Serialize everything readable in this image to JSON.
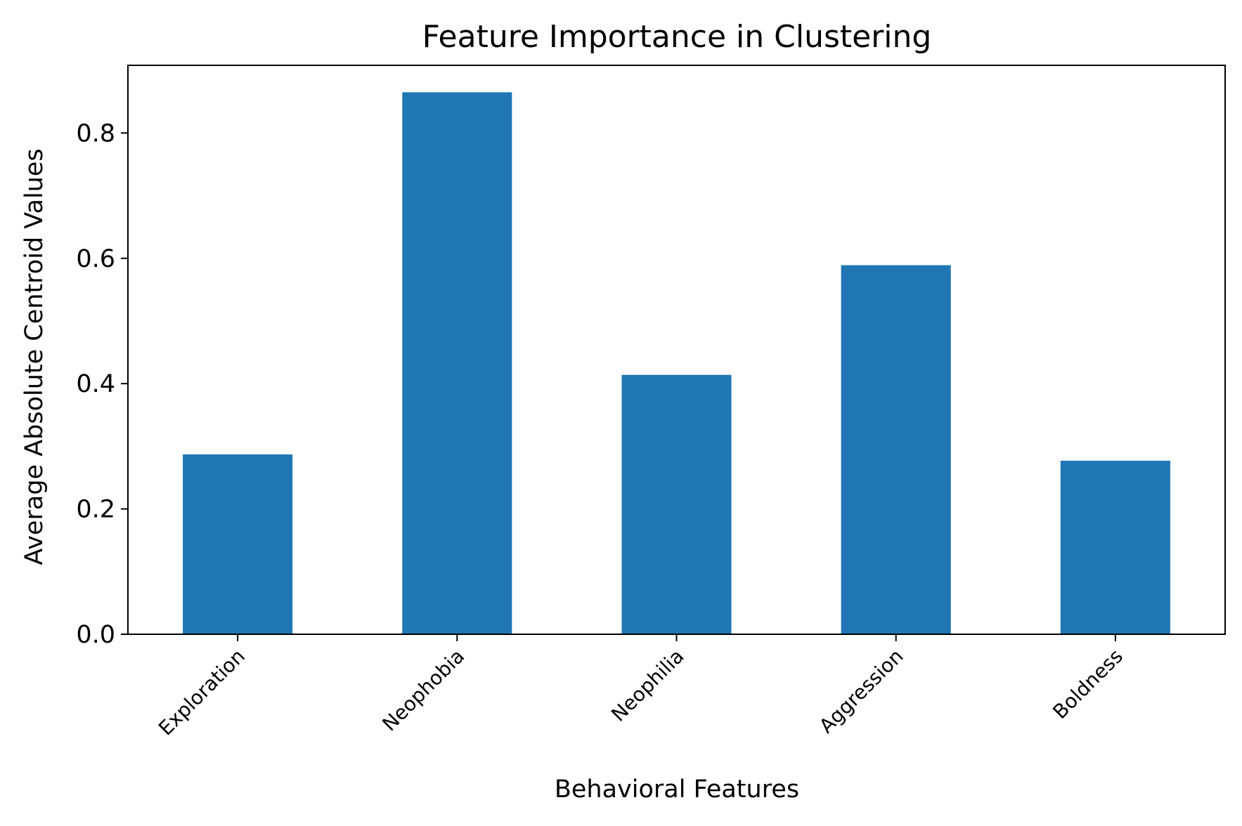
{
  "colors": {
    "bar": "#2077b4",
    "axis": "#000000",
    "background": "#ffffff"
  },
  "chart_data": {
    "type": "bar",
    "title": "Feature Importance in Clustering",
    "xlabel": "Behavioral Features",
    "ylabel": "Average Absolute Centroid Values",
    "categories": [
      "Exploration",
      "Neophobia",
      "Neophilia",
      "Aggression",
      "Boldness"
    ],
    "values": [
      0.287,
      0.865,
      0.414,
      0.589,
      0.277
    ],
    "ylim": [
      0,
      0.908
    ],
    "yticks": [
      0.0,
      0.2,
      0.4,
      0.6,
      0.8
    ],
    "ytick_labels": [
      "0.0",
      "0.2",
      "0.4",
      "0.6",
      "0.8"
    ],
    "grid": false,
    "legend": null
  }
}
